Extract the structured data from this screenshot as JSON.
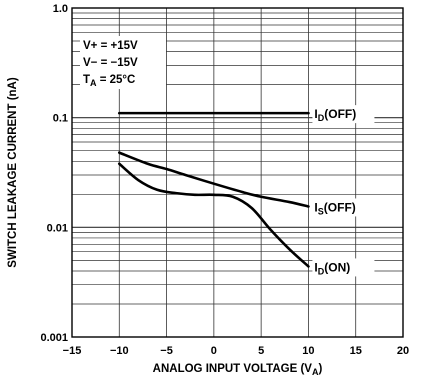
{
  "chart_data": {
    "type": "line",
    "xlabel": {
      "main": "ANALOG INPUT VOLTAGE (V",
      "sub": "A",
      "end": ")"
    },
    "ylabel": "SWITCH LEAKAGE CURRENT (nA)",
    "xlim": [
      -15,
      20
    ],
    "ylim": [
      0.001,
      1.0
    ],
    "yscale": "log",
    "grid": true,
    "x_ticks": [
      "−15",
      "−10",
      "−5",
      "0",
      "5",
      "10",
      "15",
      "20"
    ],
    "y_ticks": [
      "0.001",
      "0.01",
      "0.1",
      "1.0"
    ],
    "conditions": [
      {
        "label": "V+ = +15V"
      },
      {
        "label": "V− = −15V"
      },
      {
        "main": "T",
        "sub": "A",
        "rest": " = 25°C"
      }
    ],
    "series": [
      {
        "name_main": "I",
        "name_sub": "D",
        "name_rest": "(OFF)",
        "x": [
          -10,
          -5,
          0,
          5,
          10
        ],
        "y": [
          0.11,
          0.11,
          0.11,
          0.11,
          0.11
        ]
      },
      {
        "name_main": "I",
        "name_sub": "S",
        "name_rest": "(OFF)",
        "x": [
          -10,
          -7,
          -5,
          -3,
          0,
          3,
          5,
          8,
          10
        ],
        "y": [
          0.048,
          0.038,
          0.034,
          0.03,
          0.025,
          0.021,
          0.019,
          0.017,
          0.0155
        ]
      },
      {
        "name_main": "I",
        "name_sub": "D",
        "name_rest": "(ON)",
        "x": [
          -10,
          -8,
          -6,
          -4,
          -2,
          0,
          2,
          4,
          6,
          8,
          10
        ],
        "y": [
          0.038,
          0.027,
          0.022,
          0.0205,
          0.0198,
          0.0198,
          0.019,
          0.015,
          0.0095,
          0.0063,
          0.0044
        ]
      }
    ]
  }
}
